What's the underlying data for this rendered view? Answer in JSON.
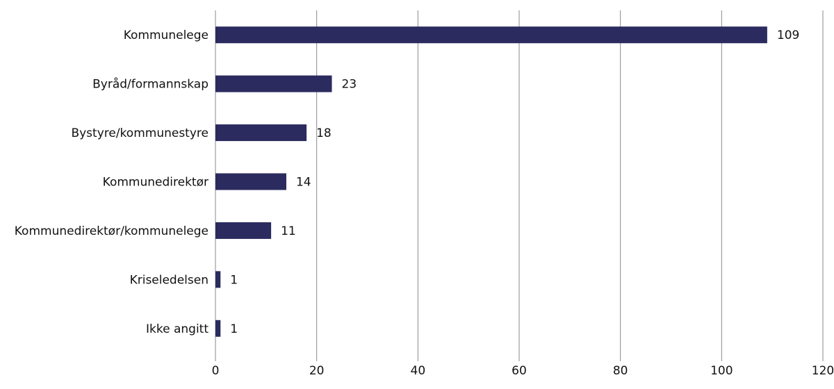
{
  "chart_data": {
    "type": "bar",
    "orientation": "horizontal",
    "categories": [
      "Kommunelege",
      "Byråd/formannskap",
      "Bystyre/kommunestyre",
      "Kommunedirektør",
      "Kommunedirektør/kommunelege",
      "Kriseledelsen",
      "Ikke angitt"
    ],
    "values": [
      109,
      23,
      18,
      14,
      11,
      1,
      1
    ],
    "color": "#2b2b5f",
    "xlim": [
      0,
      120
    ],
    "xticks": [
      0,
      20,
      40,
      60,
      80,
      100,
      120
    ],
    "grid": true
  }
}
